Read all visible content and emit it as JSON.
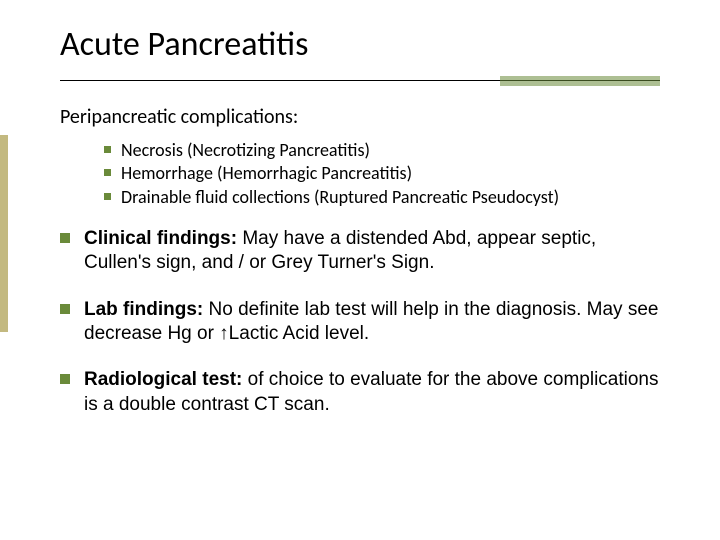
{
  "colors": {
    "bullet": "#6a8a3a",
    "accent_bar": "#6a8a3a",
    "left_band": "#9b8a2b",
    "text": "#000000",
    "background": "#ffffff"
  },
  "title": "Acute Pancreatitis",
  "subhead": "Peripancreatic complications:",
  "inner_items": [
    "Necrosis (Necrotizing Pancreatitis)",
    "Hemorrhage (Hemorrhagic Pancreatitis)",
    "Drainable fluid collections (Ruptured Pancreatic Pseudocyst)"
  ],
  "outer_items": [
    {
      "label": "Clinical findings:",
      "body": " May have a distended Abd, appear septic, Cullen's sign, and / or Grey Turner's Sign."
    },
    {
      "label": "Lab findings:",
      "body": " No definite lab test will help in the diagnosis. May see decrease Hg or ↑Lactic Acid level."
    },
    {
      "label": "Radiological test:",
      "body": " of choice to evaluate for the above complications is a double contrast CT scan."
    }
  ]
}
